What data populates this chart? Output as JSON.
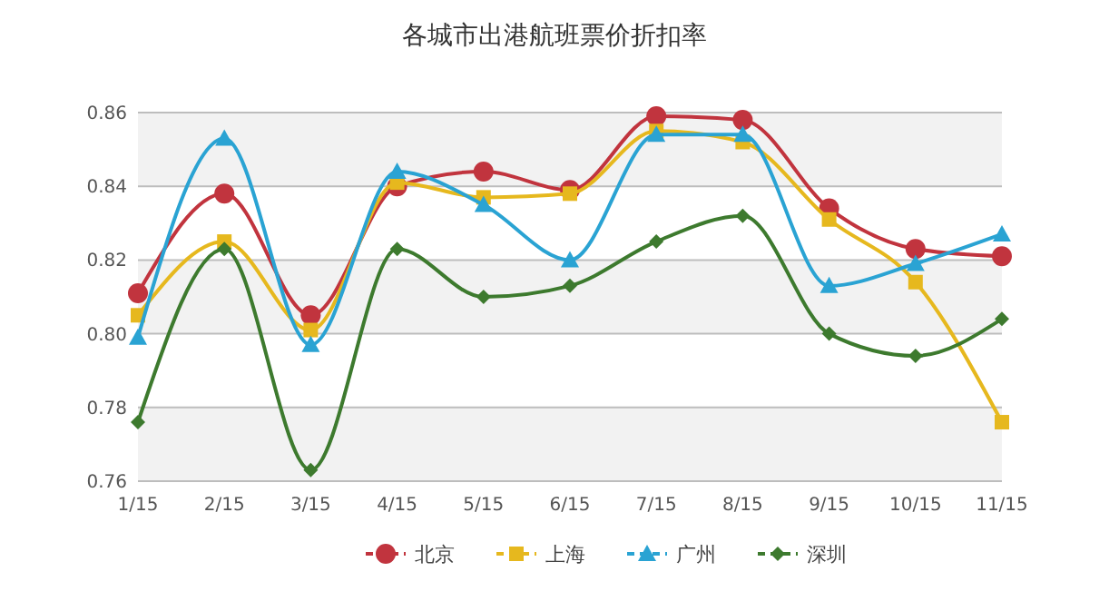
{
  "chart_data": {
    "type": "line",
    "title": "各城市出港航班票价折扣率",
    "categories": [
      "1/15",
      "2/15",
      "3/15",
      "4/15",
      "5/15",
      "6/15",
      "7/15",
      "8/15",
      "9/15",
      "10/15",
      "11/15"
    ],
    "series": [
      {
        "name": "北京",
        "color": "#c1343e",
        "marker": "circle",
        "values": [
          0.811,
          0.838,
          0.805,
          0.84,
          0.844,
          0.839,
          0.859,
          0.858,
          0.834,
          0.823,
          0.821
        ]
      },
      {
        "name": "上海",
        "color": "#e6b81e",
        "marker": "square",
        "values": [
          0.805,
          0.825,
          0.801,
          0.841,
          0.837,
          0.838,
          0.855,
          0.852,
          0.831,
          0.814,
          0.776
        ]
      },
      {
        "name": "广州",
        "color": "#2aa3d3",
        "marker": "triangle",
        "values": [
          0.799,
          0.853,
          0.797,
          0.844,
          0.835,
          0.82,
          0.854,
          0.854,
          0.813,
          0.819,
          0.827
        ]
      },
      {
        "name": "深圳",
        "color": "#3d7a2e",
        "marker": "diamond",
        "values": [
          0.776,
          0.823,
          0.763,
          0.823,
          0.81,
          0.813,
          0.825,
          0.832,
          0.8,
          0.794,
          0.804
        ]
      }
    ],
    "ylim": [
      0.76,
      0.86
    ],
    "yticks": [
      0.76,
      0.78,
      {
        "value": 0.8,
        "label": "0.80"
      },
      0.82,
      0.84,
      0.86
    ],
    "grid": "y",
    "legend": "bottom"
  }
}
